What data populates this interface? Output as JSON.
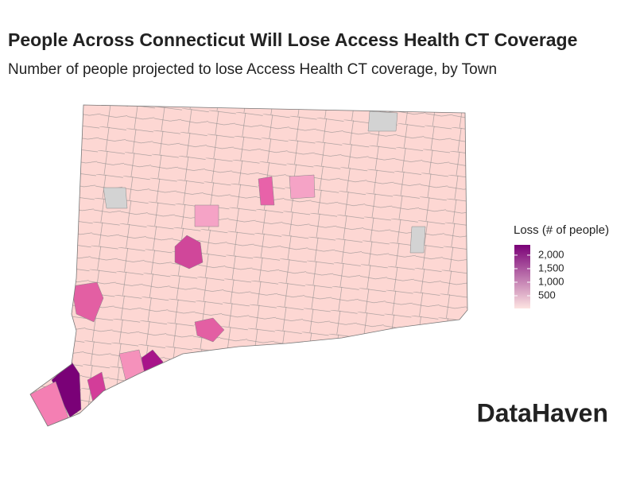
{
  "chart_data": {
    "type": "choropleth",
    "title": "People Across Connecticut Will Lose Access Health CT Coverage",
    "subtitle": "Number of people projected to lose Access Health CT coverage, by Town",
    "legend_title": "Loss (# of people)",
    "clim": [
      30,
      2380
    ],
    "cticks": [
      {
        "value": 500,
        "label": "500"
      },
      {
        "value": 1000,
        "label": "1,000"
      },
      {
        "value": 1500,
        "label": "1,500"
      },
      {
        "value": 2000,
        "label": "2,000"
      }
    ],
    "color_low": "#fde4e1",
    "color_high": "#7a0177",
    "brand": "DataHaven"
  }
}
